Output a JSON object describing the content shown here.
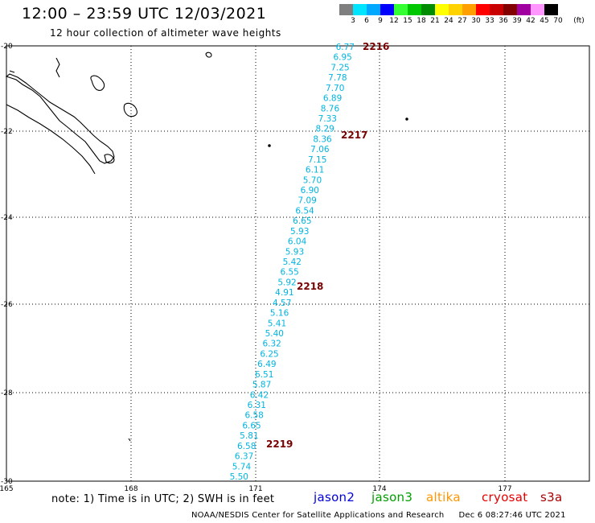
{
  "header": {
    "title": "12:00 – 23:59 UTC 12/03/2021",
    "subtitle": "12 hour collection of altimeter wave heights"
  },
  "color_scale": {
    "bins": [
      {
        "label": "3",
        "color": "#7f7f7f"
      },
      {
        "label": "6",
        "color": "#00e5ff"
      },
      {
        "label": "9",
        "color": "#00a8ff"
      },
      {
        "label": "12",
        "color": "#0000ff"
      },
      {
        "label": "15",
        "color": "#33ff33"
      },
      {
        "label": "18",
        "color": "#00c800"
      },
      {
        "label": "21",
        "color": "#008c00"
      },
      {
        "label": "24",
        "color": "#ffff00"
      },
      {
        "label": "27",
        "color": "#ffd200"
      },
      {
        "label": "30",
        "color": "#ffa000"
      },
      {
        "label": "33",
        "color": "#ff0000"
      },
      {
        "label": "36",
        "color": "#c80000"
      },
      {
        "label": "39",
        "color": "#820000"
      },
      {
        "label": "42",
        "color": "#a000a0"
      },
      {
        "label": "45",
        "color": "#ff96ff"
      },
      {
        "label": "70",
        "color": "#000000"
      }
    ],
    "unit_label": "(ft)"
  },
  "map": {
    "lat_labels": [
      "-20",
      "-22",
      "-24",
      "-26",
      "-28",
      "-30"
    ],
    "lon_labels": [
      "165",
      "168",
      "171",
      "174",
      "177"
    ],
    "track_color": "#00b4e0",
    "time_color": "#780000",
    "times": [
      {
        "label": "2216"
      },
      {
        "label": "2217"
      },
      {
        "label": "2218"
      },
      {
        "label": "2219"
      }
    ],
    "wave_heights": [
      "6.77",
      "6.95",
      "7.25",
      "7.78",
      "7.70",
      "6.89",
      "8.76",
      "7.33",
      "8.29",
      "8.36",
      "7.06",
      "7.15",
      "6.11",
      "5.70",
      "6.90",
      "7.09",
      "6.54",
      "6.65",
      "5.93",
      "6.04",
      "5.93",
      "5.42",
      "6.55",
      "5.92",
      "4.91",
      "4.57",
      "5.16",
      "5.41",
      "5.40",
      "6.32",
      "6.25",
      "6.49",
      "6.51",
      "5.87",
      "6.42",
      "6.31",
      "6.58",
      "6.65",
      "5.81",
      "6.58",
      "6.37",
      "5.74",
      "5.50"
    ]
  },
  "footer": {
    "note": "note: 1) Time is in UTC; 2) SWH is in feet",
    "satellites": [
      {
        "name": "jason2",
        "color": "#0000dc"
      },
      {
        "name": "jason3",
        "color": "#00a000"
      },
      {
        "name": "altika",
        "color": "#ff9600"
      },
      {
        "name": "cryosat",
        "color": "#e60000"
      },
      {
        "name": "s3a",
        "color": "#aa0000"
      }
    ],
    "credit": "NOAA/NESDIS Center for Satellite Applications and Research",
    "timestamp": "Dec  6 08:27:46 UTC 2021"
  }
}
